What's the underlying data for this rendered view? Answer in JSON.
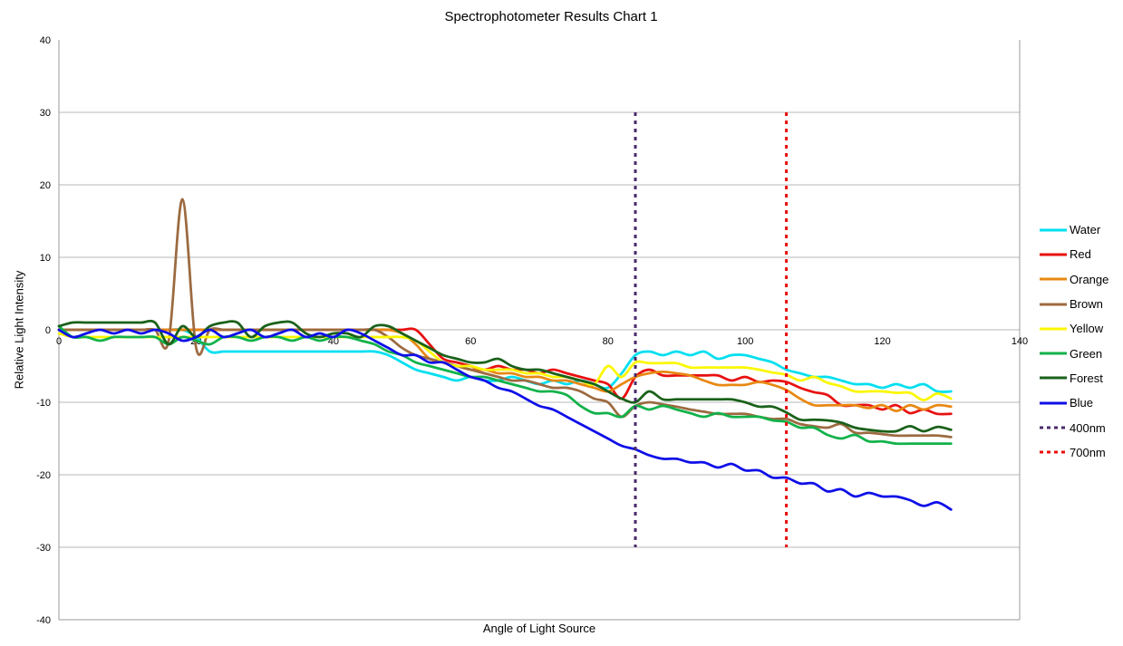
{
  "title": "Spectrophotometer Results Chart 1",
  "x_axis": {
    "label": "Angle of Light Source",
    "min": 0,
    "max": 140,
    "ticks": [
      0,
      20,
      40,
      60,
      80,
      100,
      120,
      140
    ]
  },
  "y_axis": {
    "label": "Relative Light Intensity",
    "min": -40,
    "max": 40,
    "ticks": [
      40,
      30,
      20,
      10,
      0,
      -10,
      -20,
      -30,
      -40
    ]
  },
  "legend": {
    "position": "right"
  },
  "grid_color": "#b7b7b7",
  "axis_color": "#9b9b9b",
  "chart_data": {
    "type": "line",
    "title": "Spectrophotometer Results Chart 1",
    "xlabel": "Angle of Light Source",
    "ylabel": "Relative Light Intensity",
    "xlim": [
      0,
      140
    ],
    "ylim": [
      -40,
      40
    ],
    "grid": "horizontal",
    "legend_position": "right",
    "x": [
      0,
      2,
      4,
      6,
      8,
      10,
      12,
      14,
      16,
      18,
      20,
      22,
      24,
      26,
      28,
      30,
      32,
      34,
      36,
      38,
      40,
      42,
      44,
      46,
      48,
      50,
      52,
      54,
      56,
      58,
      60,
      62,
      64,
      66,
      68,
      70,
      72,
      74,
      76,
      78,
      80,
      82,
      84,
      86,
      88,
      90,
      92,
      94,
      96,
      98,
      100,
      102,
      104,
      106,
      108,
      110,
      112,
      114,
      116,
      118,
      120,
      122,
      124,
      126,
      128,
      130
    ],
    "series": [
      {
        "name": "Water",
        "color": "#00dff0",
        "values": [
          0,
          0,
          0,
          0,
          0,
          0,
          0,
          0,
          0,
          0,
          -1,
          -3,
          -3,
          -3,
          -3,
          -3,
          -3,
          -3,
          -3,
          -3,
          -3,
          -3,
          -3,
          -3,
          -3.5,
          -4.5,
          -5.5,
          -6,
          -6.5,
          -7,
          -6.5,
          -7,
          -7,
          -6.5,
          -7,
          -7.5,
          -7,
          -7.5,
          -7,
          -7.5,
          -8,
          -6,
          -3.5,
          -3,
          -3.5,
          -3,
          -3.5,
          -3,
          -4,
          -3.5,
          -3.5,
          -4,
          -4.5,
          -5.5,
          -6,
          -6.5,
          -6.5,
          -7,
          -7.5,
          -7.5,
          -8,
          -7.5,
          -8,
          -7.5,
          -8.5,
          -8.5
        ]
      },
      {
        "name": "Red",
        "color": "#e81010",
        "values": [
          0,
          0,
          0,
          0,
          0,
          0,
          0,
          0,
          0,
          0,
          0,
          0,
          0,
          0,
          0,
          0,
          0,
          0,
          0,
          0,
          0,
          0,
          0,
          0,
          0,
          0,
          0,
          -2,
          -4,
          -4.5,
          -5,
          -5.5,
          -5,
          -5.5,
          -5.5,
          -6,
          -5.5,
          -6,
          -6.5,
          -7,
          -7.5,
          -9.5,
          -6.5,
          -5.5,
          -6.3,
          -6.3,
          -6.3,
          -6.3,
          -6.3,
          -7,
          -6.5,
          -7.2,
          -7,
          -7.2,
          -8,
          -8.6,
          -9,
          -10.4,
          -10.4,
          -10.4,
          -11,
          -10.4,
          -11.5,
          -11,
          -11.6,
          -11.6
        ]
      },
      {
        "name": "Orange",
        "color": "#e88812",
        "values": [
          0,
          0,
          0,
          0,
          0,
          0,
          0,
          0,
          0,
          0,
          0,
          0,
          0,
          0,
          0,
          0,
          0,
          0,
          0,
          0,
          0,
          0,
          0,
          0,
          0,
          -0.5,
          -2,
          -4,
          -4.5,
          -5,
          -5.5,
          -5.5,
          -6,
          -6,
          -6.5,
          -6.5,
          -7,
          -7,
          -7.5,
          -8,
          -8.5,
          -7.5,
          -6.5,
          -6,
          -5.8,
          -6,
          -6.3,
          -7,
          -7.6,
          -7.6,
          -7.6,
          -7.2,
          -7.6,
          -8.3,
          -9.5,
          -10.4,
          -10.4,
          -10.4,
          -10.4,
          -10.8,
          -10.4,
          -11.2,
          -10.4,
          -11,
          -10.4,
          -10.6
        ]
      },
      {
        "name": "Brown",
        "color": "#9c6a40",
        "values": [
          0,
          0,
          0,
          0,
          0,
          0,
          0,
          0,
          -1.5,
          18,
          -2.5,
          0,
          0,
          0,
          0,
          0,
          0,
          0,
          0,
          0,
          0,
          0,
          0,
          0,
          -1,
          -2.5,
          -3.5,
          -4,
          -4.5,
          -5,
          -5.5,
          -6,
          -6.5,
          -7,
          -7,
          -7.5,
          -8,
          -8,
          -8.5,
          -9.5,
          -10,
          -12,
          -10.5,
          -10,
          -10.3,
          -10.6,
          -11,
          -11.3,
          -11.6,
          -11.6,
          -11.6,
          -12,
          -12.3,
          -12.3,
          -13,
          -13.3,
          -13.5,
          -13,
          -14.2,
          -14.2,
          -14.4,
          -14.6,
          -14.6,
          -14.6,
          -14.6,
          -14.8
        ]
      },
      {
        "name": "Yellow",
        "color": "#fbf700",
        "values": [
          -0.5,
          -1,
          -1,
          -1,
          -1,
          -1,
          -1,
          -1,
          -1,
          -1,
          -1,
          -1,
          -1,
          -1,
          -1,
          -1,
          -1,
          -1,
          -1,
          -1,
          -1,
          -1,
          -1,
          -1,
          -1,
          -1,
          -1.5,
          -3,
          -4.5,
          -5,
          -5,
          -5.5,
          -5.5,
          -5.5,
          -6,
          -6,
          -6.5,
          -6.5,
          -7,
          -7.5,
          -5,
          -6.5,
          -4.5,
          -4.6,
          -4.6,
          -4.6,
          -5.2,
          -5.2,
          -5.2,
          -5.2,
          -5.2,
          -5.5,
          -5.9,
          -6.2,
          -7,
          -6.5,
          -7.3,
          -7.8,
          -8.5,
          -8.5,
          -8.5,
          -8.7,
          -8.7,
          -9.7,
          -8.8,
          -9.5
        ]
      },
      {
        "name": "Green",
        "color": "#12b24a",
        "values": [
          0.5,
          -1,
          -1,
          -1.5,
          -1,
          -1,
          -1,
          -1,
          -2,
          -1,
          -1.5,
          -2,
          -1,
          -1,
          -1.5,
          -1,
          -1,
          -1.5,
          -1,
          -1.5,
          -1,
          -1,
          -1.5,
          -2,
          -3,
          -3.5,
          -4.5,
          -5,
          -5.5,
          -6,
          -6.5,
          -6.5,
          -7,
          -7.5,
          -8,
          -8.5,
          -8.5,
          -9,
          -10.5,
          -11.5,
          -11.5,
          -12,
          -10.5,
          -11,
          -10.5,
          -11,
          -11.5,
          -12,
          -11.5,
          -12,
          -12,
          -12,
          -12.5,
          -12.7,
          -13.5,
          -13.5,
          -14.5,
          -15,
          -14.5,
          -15.4,
          -15.4,
          -15.7,
          -15.7,
          -15.7,
          -15.7,
          -15.7
        ]
      },
      {
        "name": "Forest",
        "color": "#1a611a",
        "values": [
          0.5,
          1,
          1,
          1,
          1,
          1,
          1,
          1,
          -2,
          0.5,
          -1,
          0.5,
          1,
          1,
          -1,
          0.5,
          1,
          1,
          -0.5,
          -1,
          -0.5,
          -0.5,
          -1,
          0.5,
          0.5,
          -0.5,
          -1.5,
          -2.5,
          -3.5,
          -4,
          -4.5,
          -4.5,
          -4,
          -5,
          -5.5,
          -5.5,
          -6,
          -6.5,
          -7,
          -7.5,
          -8.5,
          -9.5,
          -10,
          -8.5,
          -9.6,
          -9.6,
          -9.6,
          -9.6,
          -9.6,
          -9.6,
          -10,
          -10.6,
          -10.6,
          -11.4,
          -12.4,
          -12.4,
          -12.5,
          -12.8,
          -13.5,
          -13.8,
          -14,
          -14,
          -13.3,
          -14,
          -13.4,
          -13.8
        ]
      },
      {
        "name": "Blue",
        "color": "#0f0fe8",
        "values": [
          0,
          -1,
          -0.5,
          0,
          -0.5,
          0,
          -0.5,
          0,
          -0.5,
          -1.5,
          -1,
          0,
          -1,
          -0.5,
          0,
          -1,
          -0.5,
          0,
          -1,
          -0.5,
          -1,
          0,
          -0.5,
          -1.5,
          -2.5,
          -3.5,
          -3.5,
          -4.5,
          -4.5,
          -5.5,
          -6.5,
          -7,
          -8,
          -8.5,
          -9.5,
          -10.5,
          -11,
          -12,
          -13,
          -14,
          -15,
          -16,
          -16.5,
          -17.3,
          -17.8,
          -17.8,
          -18.3,
          -18.3,
          -19,
          -18.5,
          -19.4,
          -19.4,
          -20.4,
          -20.4,
          -21.2,
          -21.2,
          -22.3,
          -22,
          -23,
          -22.5,
          -23,
          -23,
          -23.5,
          -24.3,
          -23.8,
          -24.8
        ]
      }
    ],
    "vlines": [
      {
        "name": "400nm",
        "x": 84,
        "color": "#4a2a68",
        "style": "dashed",
        "y_from": 30,
        "y_to": -30
      },
      {
        "name": "700nm",
        "x": 106,
        "color": "#ea0d0d",
        "style": "dashed",
        "y_from": 30,
        "y_to": -30
      }
    ]
  }
}
